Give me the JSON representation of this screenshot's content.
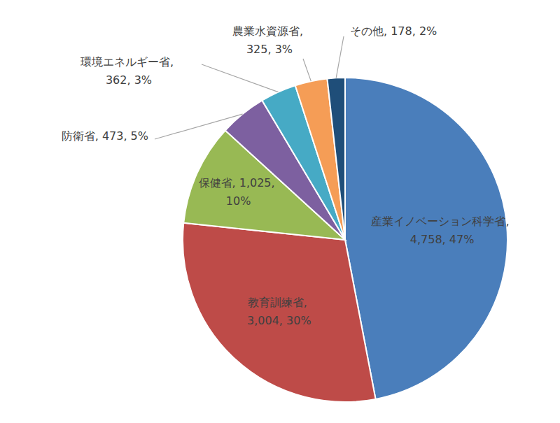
{
  "chart_data": {
    "type": "pie",
    "categories": [
      "産業イノベーション科学省",
      "教育訓練省",
      "保健省",
      "防衛省",
      "環境エネルギー省",
      "農業水資源省",
      "その他"
    ],
    "values": [
      4758,
      3004,
      1025,
      473,
      362,
      325,
      178
    ],
    "value_labels": [
      "4,758",
      "3,004",
      "1,025",
      "473",
      "362",
      "325",
      "178"
    ],
    "percent_labels": [
      "47%",
      "30%",
      "10%",
      "5%",
      "3%",
      "3%",
      "2%"
    ],
    "label_separator": ", ",
    "colors": [
      "#4a7ebb",
      "#be4b48",
      "#98b954",
      "#7d60a0",
      "#46aac5",
      "#f59d56",
      "#1f4e79"
    ],
    "data_labels": true
  }
}
